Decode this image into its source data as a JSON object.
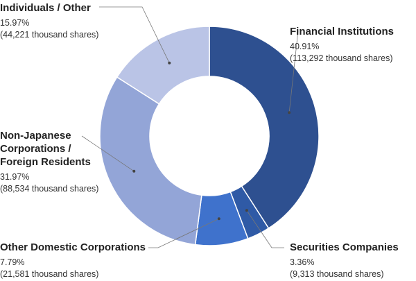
{
  "chart_data": {
    "type": "pie",
    "donut": true,
    "title": "",
    "categories": [
      "Financial Institutions",
      "Securities Companies",
      "Other Domestic Corporations",
      "Non-Japanese Corporations / Foreign Residents",
      "Individuals / Other"
    ],
    "label_lines": [
      [
        "Financial Institutions"
      ],
      [
        "Securities Companies"
      ],
      [
        "Other Domestic Corporations"
      ],
      [
        "Non-Japanese",
        "Corporations /",
        "Foreign Residents"
      ],
      [
        "Individuals / Other"
      ]
    ],
    "values": [
      40.91,
      3.36,
      7.79,
      31.97,
      15.97
    ],
    "percent_labels": [
      "40.91%",
      "3.36%",
      "7.79%",
      "31.97%",
      "15.97%"
    ],
    "shares_labels": [
      "(113,292 thousand shares)",
      "(9,313 thousand shares)",
      "(21,581 thousand shares)",
      "(88,534 thousand shares)",
      "(44,221 thousand shares)"
    ],
    "colors": [
      "#2e5090",
      "#2f5aa6",
      "#3f72cc",
      "#93a5d7",
      "#bac4e6"
    ],
    "start_angle": "12 o'clock, clockwise"
  }
}
